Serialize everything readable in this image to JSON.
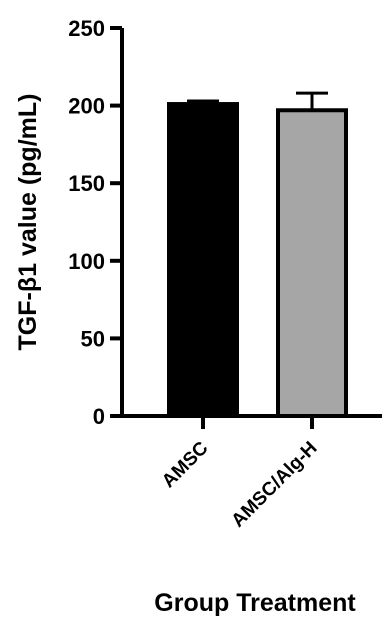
{
  "chart_data": {
    "type": "bar",
    "categories": [
      "AMSC",
      "AMSC/Alg-H"
    ],
    "values": [
      201,
      197
    ],
    "error": [
      2,
      11
    ],
    "colors": [
      "#000000",
      "#a6a6a6"
    ],
    "xlabel": "Group Treatment",
    "ylabel": "TGF-β1 value (pg/mL)",
    "ylim": [
      0,
      250
    ],
    "yticks": [
      0,
      50,
      100,
      150,
      200,
      250
    ],
    "grid": false
  }
}
